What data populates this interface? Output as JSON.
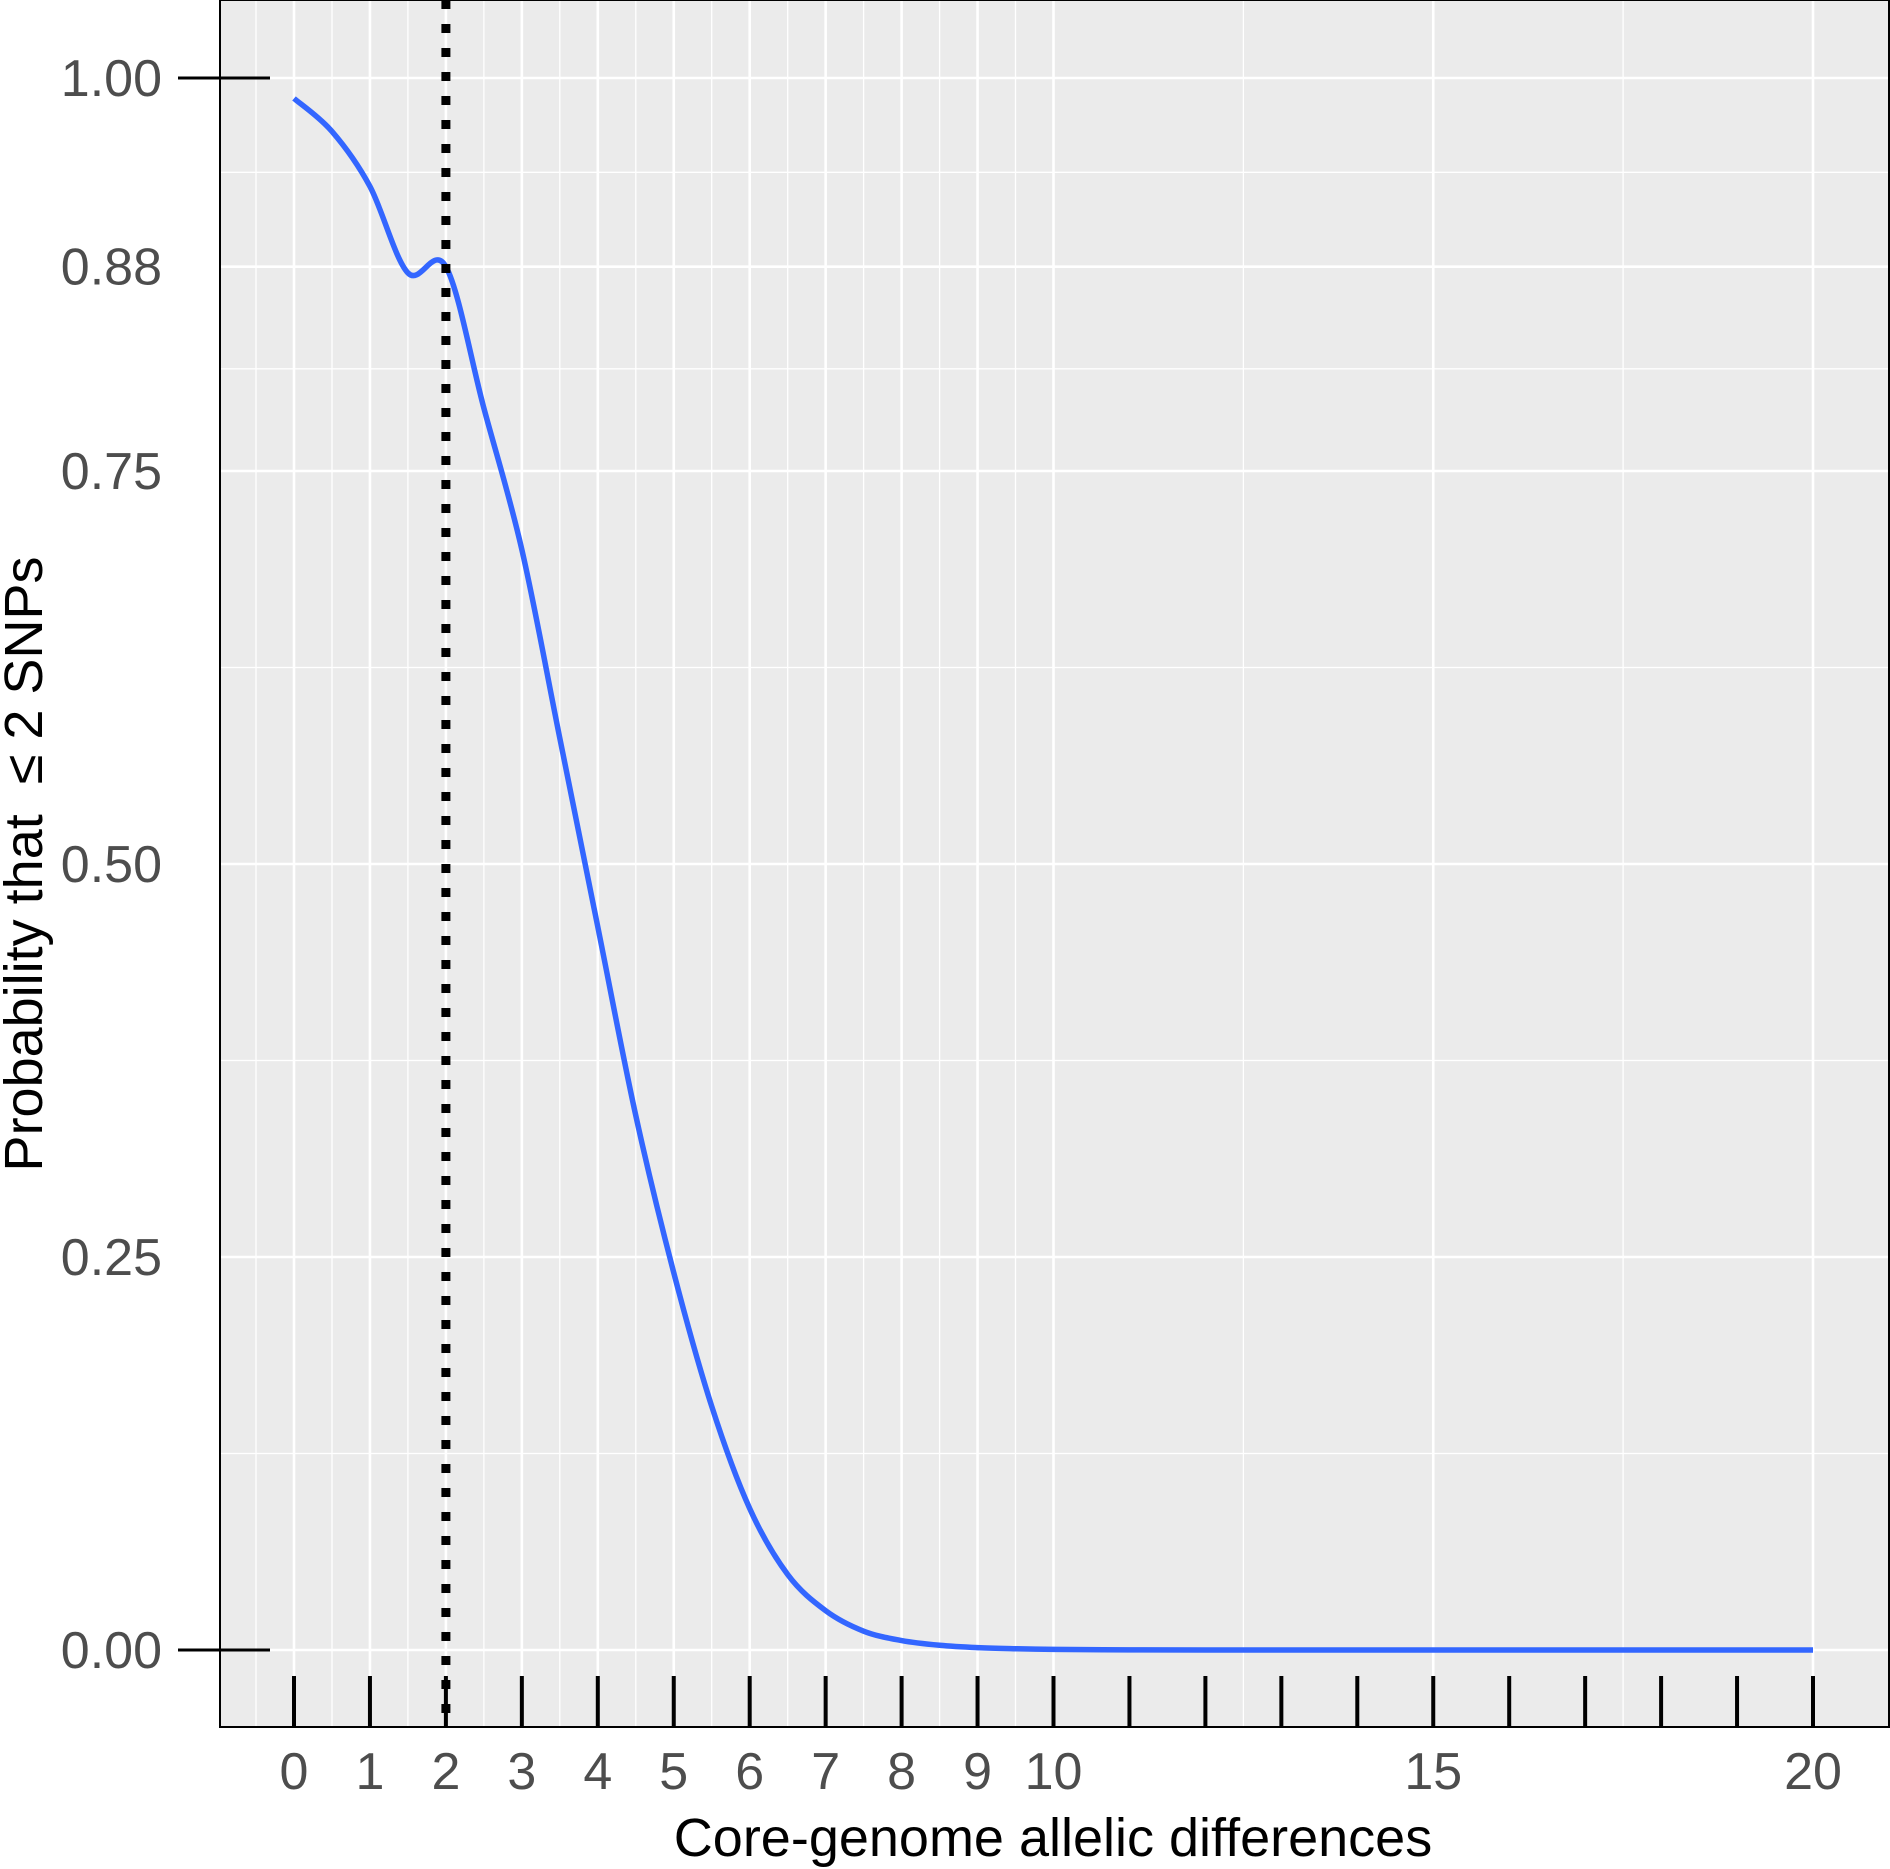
{
  "chart_data": {
    "type": "line",
    "title": "",
    "xlabel": "Core-genome allelic differences",
    "ylabel": "Probability that  ≤ 2 SNPs",
    "xlim": [
      -1,
      21
    ],
    "ylim": [
      -0.05,
      1.05
    ],
    "x_ticks": [
      0,
      1,
      2,
      3,
      4,
      5,
      6,
      7,
      8,
      9,
      10,
      15,
      20
    ],
    "x_tick_labels": [
      "0",
      "1",
      "2",
      "3",
      "4",
      "5",
      "6",
      "7",
      "8",
      "9",
      "10",
      "15",
      "20"
    ],
    "y_ticks": [
      0.0,
      0.25,
      0.5,
      0.75,
      0.88,
      1.0
    ],
    "y_tick_labels": [
      "0.00",
      "0.25",
      "0.50",
      "0.75",
      "0.88",
      "1.00"
    ],
    "grid": true,
    "rug_x": [
      0,
      1,
      2,
      3,
      4,
      5,
      6,
      7,
      8,
      9,
      10,
      11,
      12,
      13,
      14,
      15,
      16,
      17,
      18,
      19,
      20
    ],
    "vline": {
      "x": 2,
      "style": "dotted",
      "color": "#000000"
    },
    "series": [
      {
        "color": "#3366ff",
        "x": [
          0,
          0.5,
          1,
          1.5,
          2,
          2.5,
          3,
          3.5,
          4,
          4.5,
          5,
          5.5,
          6,
          6.5,
          7,
          7.5,
          8,
          8.5,
          9,
          9.5,
          10,
          11,
          12,
          13,
          14,
          15,
          16,
          17,
          18,
          19,
          20
        ],
        "y": [
          0.987,
          0.966,
          0.931,
          0.876,
          0.88,
          0.79,
          0.7,
          0.58,
          0.46,
          0.34,
          0.24,
          0.155,
          0.09,
          0.048,
          0.025,
          0.012,
          0.006,
          0.003,
          0.0015,
          0.0008,
          0.0004,
          0.0001,
          0.0,
          0.0,
          0.0,
          0.0,
          0.0,
          0.0,
          0.0,
          0.0,
          0.0
        ]
      }
    ]
  }
}
